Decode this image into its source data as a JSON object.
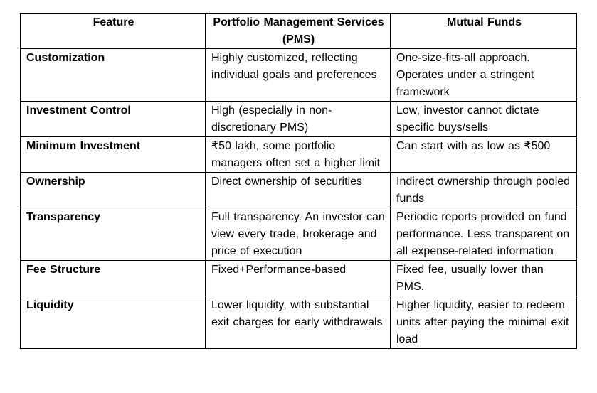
{
  "table": {
    "headers": [
      "Feature",
      "Portfolio Management Services (PMS)",
      "Mutual Funds"
    ],
    "rows": [
      {
        "feature": "Customization",
        "pms": "Highly customized, reflecting individual goals and preferences",
        "mf": "One-size-fits-all approach. Operates under a stringent framework"
      },
      {
        "feature": "Investment Control",
        "pms": "High (especially in non-discretionary PMS)",
        "mf": "Low, investor cannot dictate specific buys/sells"
      },
      {
        "feature": "Minimum Investment",
        "pms": "₹50 lakh, some portfolio managers often set a higher limit",
        "mf": "Can start with as low as ₹500"
      },
      {
        "feature": "Ownership",
        "pms": "Direct ownership of securities",
        "mf": "Indirect ownership through pooled funds"
      },
      {
        "feature": "Transparency",
        "pms": "Full transparency. An investor can view every trade, brokerage and price of execution",
        "mf": "Periodic reports provided on fund performance.  Less transparent on all expense-related information"
      },
      {
        "feature": "Fee Structure",
        "pms": "Fixed+Performance-based",
        "mf": "Fixed fee, usually lower than PMS."
      },
      {
        "feature": "Liquidity",
        "pms": "Lower liquidity, with substantial exit charges for early withdrawals",
        "mf": "Higher liquidity, easier to redeem units after paying the minimal exit load"
      }
    ]
  }
}
